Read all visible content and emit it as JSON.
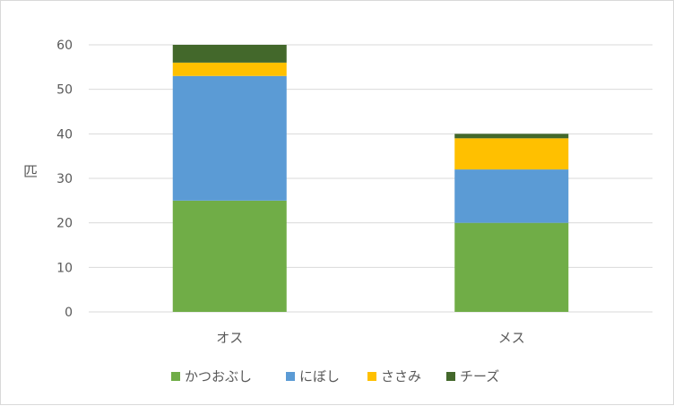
{
  "chart_data": {
    "type": "bar",
    "stacked": true,
    "categories": [
      "オス",
      "メス"
    ],
    "series": [
      {
        "name": "かつおぶし",
        "values": [
          25,
          20
        ],
        "color": "#70AD47"
      },
      {
        "name": "にぼし",
        "values": [
          28,
          12
        ],
        "color": "#5B9BD5"
      },
      {
        "name": "ささみ",
        "values": [
          3,
          7
        ],
        "color": "#FFC000"
      },
      {
        "name": "チーズ",
        "values": [
          4,
          1
        ],
        "color": "#43682B"
      }
    ],
    "ylabel": "匹",
    "xlabel": "",
    "ylim": [
      0,
      60
    ],
    "yticks": [
      "0",
      "10",
      "20",
      "30",
      "40",
      "50",
      "60"
    ],
    "grid": true,
    "legend_position": "bottom"
  }
}
